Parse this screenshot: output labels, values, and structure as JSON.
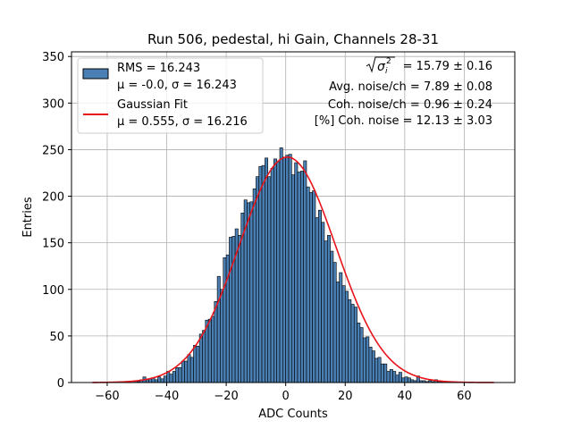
{
  "chart_data": {
    "type": "bar",
    "title": "Run 506, pedestal, hi Gain, Channels 28-31",
    "xlabel": "ADC Counts",
    "ylabel": "Entries",
    "xlim": [
      -72,
      77
    ],
    "ylim": [
      0,
      355
    ],
    "xticks": [
      "−60",
      "−40",
      "−20",
      "0",
      "20",
      "40",
      "60"
    ],
    "xtick_values": [
      -60,
      -40,
      -20,
      0,
      20,
      40,
      60
    ],
    "yticks": [
      "0",
      "50",
      "100",
      "150",
      "200",
      "250",
      "300",
      "350"
    ],
    "ytick_values": [
      0,
      50,
      100,
      150,
      200,
      250,
      300,
      350
    ],
    "grid": true,
    "legend_position": "top-left",
    "bar_color": "#4a7fb4",
    "fit_color": "#e8141a",
    "bin_width": 1,
    "histogram": {
      "name": "RMS = 16.243",
      "stats": "μ = -0.0, σ = 16.243",
      "x_start": -65,
      "counts": [
        0,
        0,
        0,
        0,
        0,
        0,
        0,
        0,
        0,
        0,
        0,
        0,
        0,
        0,
        2,
        1,
        3,
        6,
        3,
        4,
        5,
        3,
        6,
        4,
        7,
        12,
        9,
        12,
        16,
        16,
        23,
        23,
        30,
        27,
        40,
        39,
        52,
        56,
        67,
        68,
        71,
        87,
        114,
        100,
        134,
        137,
        156,
        157,
        165,
        158,
        182,
        196,
        193,
        194,
        208,
        221,
        232,
        233,
        241,
        221,
        230,
        240,
        237,
        252,
        242,
        244,
        245,
        223,
        236,
        226,
        227,
        238,
        210,
        204,
        206,
        177,
        185,
        172,
        152,
        158,
        141,
        129,
        108,
        118,
        104,
        98,
        89,
        84,
        81,
        64,
        59,
        48,
        49,
        38,
        34,
        26,
        27,
        20,
        20,
        12,
        14,
        12,
        8,
        11,
        5,
        6,
        5,
        3,
        2,
        7,
        2,
        2,
        1,
        2,
        1,
        3,
        1,
        1,
        0,
        1,
        0,
        0,
        0,
        0,
        0,
        0,
        0,
        0,
        0,
        0,
        0,
        0,
        0,
        0,
        0
      ]
    },
    "fit": {
      "name": "Gaussian Fit",
      "stats": "μ = 0.555, σ = 16.216",
      "mu": 0.555,
      "sigma": 16.216,
      "amplitude": 242,
      "x_range": [
        -65,
        70
      ]
    },
    "annotations": [
      "= 15.79 ± 0.16",
      "Avg. noise/ch = 7.89 ± 0.08",
      "Coh. noise/ch = 0.96 ± 0.24",
      "[%] Coh. noise = 12.13 ± 3.03"
    ]
  }
}
